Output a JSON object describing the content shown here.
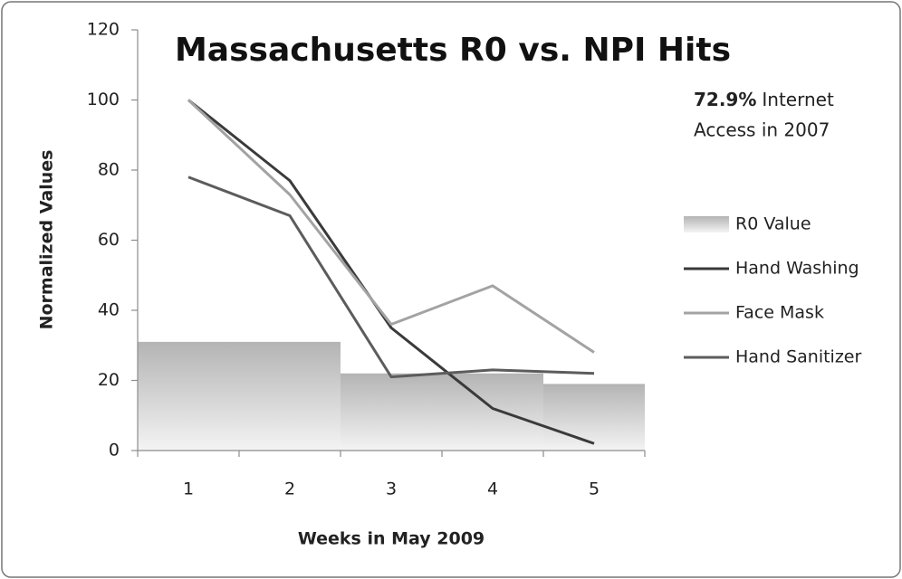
{
  "chart_data": {
    "type": "line",
    "title": "Massachusetts R0 vs. NPI Hits",
    "x_label": "Weeks in May 2009",
    "y_label": "Normalized Values",
    "annotation_bold": "72.9%",
    "annotation_lines": [
      "Internet",
      "Access in 2007"
    ],
    "categories": [
      "1",
      "2",
      "3",
      "4",
      "5"
    ],
    "ylim": [
      0,
      120
    ],
    "yticks": [
      0,
      20,
      40,
      60,
      80,
      100,
      120
    ],
    "legend": "right",
    "series": [
      {
        "name": "R0 Value",
        "type": "bar",
        "color": "#b4b4b4",
        "values": [
          31,
          31,
          22,
          22,
          19
        ]
      },
      {
        "name": "Hand Washing",
        "type": "line",
        "color": "#3a3a3a",
        "values": [
          100,
          77,
          35,
          12,
          2
        ]
      },
      {
        "name": "Face Mask",
        "type": "line",
        "color": "#a3a3a3",
        "values": [
          100,
          73,
          36,
          47,
          28
        ]
      },
      {
        "name": "Hand Sanitizer",
        "type": "line",
        "color": "#5c5c5c",
        "values": [
          78,
          67,
          21,
          23,
          22
        ]
      }
    ]
  }
}
